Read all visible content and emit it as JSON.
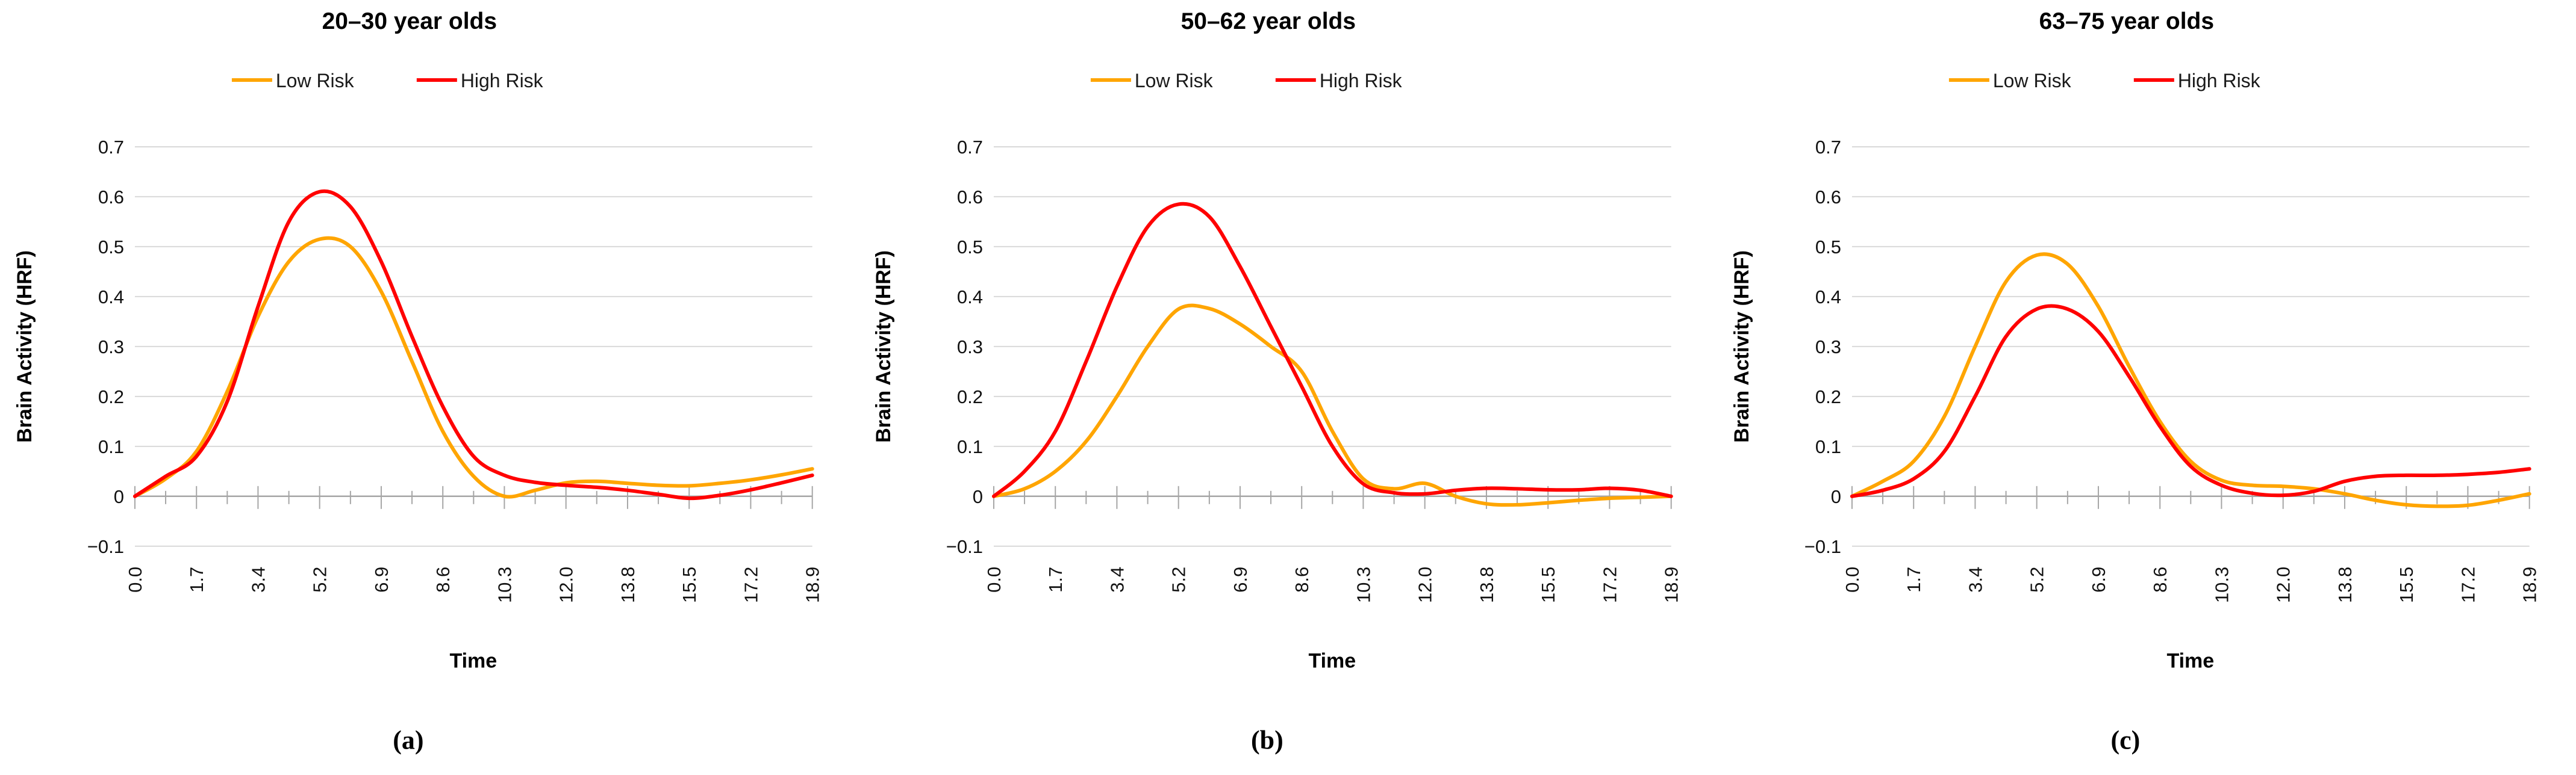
{
  "figure": {
    "y_axis_label": "Brain Activity (HRF)",
    "x_axis_label": "Time",
    "y_tick_labels": [
      "0.7",
      "0.6",
      "0.5",
      "0.4",
      "0.3",
      "0.2",
      "0.1",
      "0",
      "−0.1"
    ],
    "y_tick_values": [
      0.7,
      0.6,
      0.5,
      0.4,
      0.3,
      0.2,
      0.1,
      0,
      -0.1
    ],
    "x_tick_labels": [
      "0.0",
      "1.7",
      "3.4",
      "5.2",
      "6.9",
      "8.6",
      "10.3",
      "12.0",
      "13.8",
      "15.5",
      "17.2",
      "18.9"
    ],
    "colors": {
      "low_risk": "#FFA500",
      "high_risk": "#FF0000",
      "gridline": "#D9D9D9",
      "axis": "#A6A6A6",
      "text": "#000000"
    }
  },
  "chart_data": [
    {
      "type": "line",
      "title": "20–30 year olds",
      "caption": "(a)",
      "xlabel": "Time",
      "ylabel": "Brain Activity (HRF)",
      "ylim": [
        -0.1,
        0.7
      ],
      "grid": true,
      "legend_position": "top",
      "x": [
        0.0,
        0.9,
        1.7,
        2.6,
        3.4,
        4.3,
        5.2,
        6.0,
        6.9,
        7.7,
        8.6,
        9.5,
        10.3,
        11.2,
        12.0,
        12.9,
        13.8,
        14.6,
        15.5,
        16.4,
        17.2,
        18.1,
        18.9
      ],
      "series": [
        {
          "name": "Low Risk",
          "color": "#FFA500",
          "values": [
            0.0,
            0.035,
            0.09,
            0.21,
            0.36,
            0.47,
            0.515,
            0.5,
            0.41,
            0.27,
            0.13,
            0.04,
            0.0,
            0.012,
            0.027,
            0.03,
            0.026,
            0.022,
            0.021,
            0.026,
            0.033,
            0.043,
            0.055
          ]
        },
        {
          "name": "High Risk",
          "color": "#FF0000",
          "values": [
            0.0,
            0.04,
            0.08,
            0.19,
            0.38,
            0.55,
            0.61,
            0.58,
            0.47,
            0.32,
            0.18,
            0.08,
            0.042,
            0.028,
            0.022,
            0.018,
            0.012,
            0.004,
            -0.004,
            0.002,
            0.013,
            0.027,
            0.042
          ]
        }
      ]
    },
    {
      "type": "line",
      "title": "50–62 year olds",
      "caption": "(b)",
      "xlabel": "Time",
      "ylabel": "Brain Activity (HRF)",
      "ylim": [
        -0.1,
        0.7
      ],
      "grid": true,
      "legend_position": "top",
      "x": [
        0.0,
        0.9,
        1.7,
        2.6,
        3.4,
        4.3,
        5.2,
        6.0,
        6.9,
        7.7,
        8.6,
        9.5,
        10.3,
        11.2,
        12.0,
        12.9,
        13.8,
        14.6,
        15.5,
        16.4,
        17.2,
        18.1,
        18.9
      ],
      "series": [
        {
          "name": "Low Risk",
          "color": "#FFA500",
          "values": [
            0.0,
            0.015,
            0.05,
            0.11,
            0.2,
            0.3,
            0.375,
            0.376,
            0.345,
            0.3,
            0.25,
            0.13,
            0.035,
            0.015,
            0.026,
            0.0,
            -0.015,
            -0.017,
            -0.013,
            -0.008,
            -0.004,
            -0.002,
            0.0
          ]
        },
        {
          "name": "High Risk",
          "color": "#FF0000",
          "values": [
            0.0,
            0.05,
            0.13,
            0.27,
            0.42,
            0.54,
            0.585,
            0.56,
            0.46,
            0.34,
            0.22,
            0.1,
            0.025,
            0.007,
            0.005,
            0.012,
            0.016,
            0.015,
            0.013,
            0.013,
            0.016,
            0.012,
            0.0
          ]
        }
      ]
    },
    {
      "type": "line",
      "title": "63–75 year olds",
      "caption": "(c)",
      "xlabel": "Time",
      "ylabel": "Brain Activity (HRF)",
      "ylim": [
        -0.1,
        0.7
      ],
      "grid": true,
      "legend_position": "top",
      "x": [
        0.0,
        0.9,
        1.7,
        2.6,
        3.4,
        4.3,
        5.2,
        6.0,
        6.9,
        7.7,
        8.6,
        9.5,
        10.3,
        11.2,
        12.0,
        12.9,
        13.8,
        14.6,
        15.5,
        16.4,
        17.2,
        18.1,
        18.9
      ],
      "series": [
        {
          "name": "Low Risk",
          "color": "#FFA500",
          "values": [
            0.0,
            0.03,
            0.07,
            0.16,
            0.3,
            0.43,
            0.483,
            0.465,
            0.38,
            0.26,
            0.15,
            0.07,
            0.032,
            0.022,
            0.02,
            0.015,
            0.005,
            -0.008,
            -0.017,
            -0.02,
            -0.018,
            -0.008,
            0.005
          ]
        },
        {
          "name": "High Risk",
          "color": "#FF0000",
          "values": [
            0.0,
            0.012,
            0.035,
            0.09,
            0.2,
            0.32,
            0.375,
            0.375,
            0.33,
            0.24,
            0.14,
            0.06,
            0.022,
            0.006,
            0.002,
            0.01,
            0.03,
            0.04,
            0.042,
            0.042,
            0.044,
            0.048,
            0.055
          ]
        }
      ]
    }
  ]
}
